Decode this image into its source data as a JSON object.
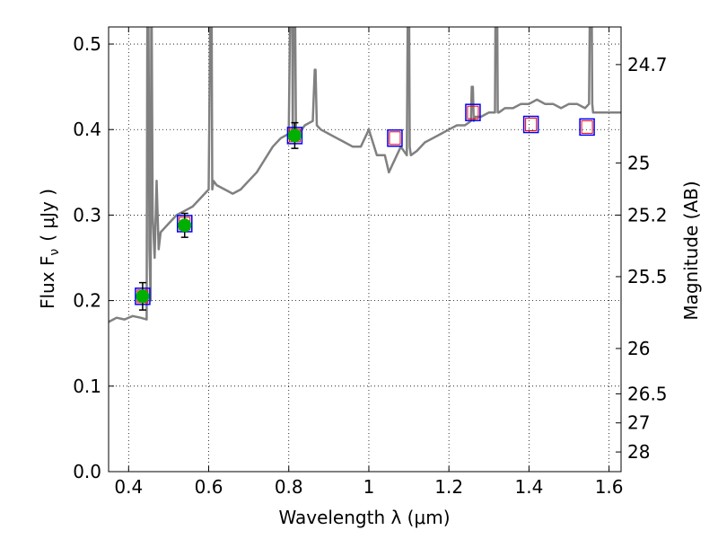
{
  "chart_data": {
    "type": "line",
    "xlabel": "Wavelength  λ (μm)",
    "ylabel": "Flux  F",
    "ylabel_sub": "ν",
    "ylabel_unit": "( μJy )",
    "y2label": "Magnitude (AB)",
    "xlim": [
      0.35,
      1.63
    ],
    "ylim": [
      0.0,
      0.52
    ],
    "x_ticks": [
      0.4,
      0.6,
      0.8,
      1.0,
      1.2,
      1.4,
      1.6
    ],
    "x_tick_labels": [
      "0.4",
      "0.6",
      "0.8",
      "1",
      "1.2",
      "1.4",
      "1.6"
    ],
    "y_ticks": [
      0.0,
      0.1,
      0.2,
      0.3,
      0.4,
      0.5
    ],
    "y_tick_labels": [
      "0.0",
      "0.1",
      "0.2",
      "0.3",
      "0.4",
      "0.5"
    ],
    "y2_ticks": [
      {
        "label": "24.7",
        "flux": 0.476
      },
      {
        "label": "25",
        "flux": 0.361
      },
      {
        "label": "25.2",
        "flux": 0.3
      },
      {
        "label": "25.5",
        "flux": 0.228
      },
      {
        "label": "26",
        "flux": 0.144
      },
      {
        "label": "26.5",
        "flux": 0.091
      },
      {
        "label": "27",
        "flux": 0.057
      },
      {
        "label": "28",
        "flux": 0.023
      }
    ],
    "grid": true,
    "colors": {
      "model": "#808080",
      "observed_marker": "#00b000",
      "box_edge": "#0000ff",
      "model_flux_edge": "#ff0000",
      "errorbar": "#000000"
    },
    "series": [
      {
        "name": "model spectrum",
        "style": "line",
        "x": [
          0.35,
          0.37,
          0.39,
          0.41,
          0.43,
          0.445,
          0.447,
          0.449,
          0.452,
          0.455,
          0.457,
          0.46,
          0.465,
          0.47,
          0.475,
          0.48,
          0.5,
          0.52,
          0.54,
          0.56,
          0.58,
          0.6,
          0.605,
          0.607,
          0.609,
          0.612,
          0.62,
          0.64,
          0.66,
          0.68,
          0.7,
          0.72,
          0.74,
          0.76,
          0.78,
          0.8,
          0.805,
          0.808,
          0.81,
          0.812,
          0.815,
          0.818,
          0.82,
          0.825,
          0.84,
          0.86,
          0.865,
          0.867,
          0.87,
          0.88,
          0.9,
          0.92,
          0.94,
          0.96,
          0.98,
          1.0,
          1.02,
          1.04,
          1.05,
          1.06,
          1.08,
          1.095,
          1.098,
          1.1,
          1.102,
          1.105,
          1.12,
          1.14,
          1.16,
          1.18,
          1.2,
          1.22,
          1.24,
          1.255,
          1.257,
          1.26,
          1.262,
          1.265,
          1.28,
          1.3,
          1.315,
          1.317,
          1.32,
          1.322,
          1.325,
          1.34,
          1.36,
          1.38,
          1.4,
          1.42,
          1.44,
          1.46,
          1.48,
          1.5,
          1.52,
          1.54,
          1.55,
          1.553,
          1.556,
          1.558,
          1.56,
          1.58,
          1.6,
          1.63
        ],
        "y": [
          0.175,
          0.18,
          0.178,
          0.182,
          0.18,
          0.178,
          0.6,
          0.6,
          0.26,
          0.2,
          0.6,
          0.3,
          0.25,
          0.34,
          0.26,
          0.28,
          0.29,
          0.3,
          0.305,
          0.31,
          0.32,
          0.33,
          0.6,
          0.6,
          0.33,
          0.34,
          0.335,
          0.33,
          0.325,
          0.33,
          0.34,
          0.35,
          0.365,
          0.38,
          0.39,
          0.395,
          0.6,
          0.6,
          0.39,
          0.6,
          0.6,
          0.39,
          0.4,
          0.395,
          0.405,
          0.41,
          0.47,
          0.47,
          0.405,
          0.4,
          0.395,
          0.39,
          0.385,
          0.38,
          0.38,
          0.4,
          0.37,
          0.37,
          0.35,
          0.36,
          0.38,
          0.37,
          0.6,
          0.6,
          0.38,
          0.37,
          0.375,
          0.385,
          0.39,
          0.395,
          0.4,
          0.405,
          0.405,
          0.41,
          0.45,
          0.45,
          0.41,
          0.415,
          0.415,
          0.42,
          0.42,
          0.6,
          0.6,
          0.42,
          0.42,
          0.425,
          0.425,
          0.43,
          0.43,
          0.435,
          0.43,
          0.43,
          0.425,
          0.43,
          0.43,
          0.425,
          0.43,
          0.6,
          0.6,
          0.43,
          0.42,
          0.42,
          0.42,
          0.42
        ]
      },
      {
        "name": "observed photometry",
        "style": "marker",
        "x": [
          0.435,
          0.54,
          0.815
        ],
        "y": [
          0.205,
          0.288,
          0.393
        ],
        "yerr": [
          0.016,
          0.014,
          0.015
        ]
      },
      {
        "name": "model photometry",
        "style": "open-square",
        "x": [
          0.435,
          0.54,
          0.815,
          1.065,
          1.26,
          1.405,
          1.545
        ],
        "y": [
          0.205,
          0.29,
          0.393,
          0.39,
          0.42,
          0.406,
          0.403
        ]
      }
    ]
  }
}
